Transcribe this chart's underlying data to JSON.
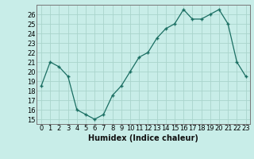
{
  "x": [
    0,
    1,
    2,
    3,
    4,
    5,
    6,
    7,
    8,
    9,
    10,
    11,
    12,
    13,
    14,
    15,
    16,
    17,
    18,
    19,
    20,
    21,
    22,
    23
  ],
  "y": [
    18.5,
    21.0,
    20.5,
    19.5,
    16.0,
    15.5,
    15.0,
    15.5,
    17.5,
    18.5,
    20.0,
    21.5,
    22.0,
    23.5,
    24.5,
    25.0,
    26.5,
    25.5,
    25.5,
    26.0,
    26.5,
    25.0,
    21.0,
    19.5
  ],
  "line_color": "#1a6e62",
  "marker": "+",
  "bg_color": "#c8ede8",
  "grid_color": "#aad4cc",
  "xlabel": "Humidex (Indice chaleur)",
  "ylabel_ticks": [
    15,
    16,
    17,
    18,
    19,
    20,
    21,
    22,
    23,
    24,
    25,
    26
  ],
  "ylim": [
    14.5,
    27.0
  ],
  "xlim": [
    -0.5,
    23.5
  ],
  "tick_fontsize": 6.0,
  "xlabel_fontsize": 7.0
}
